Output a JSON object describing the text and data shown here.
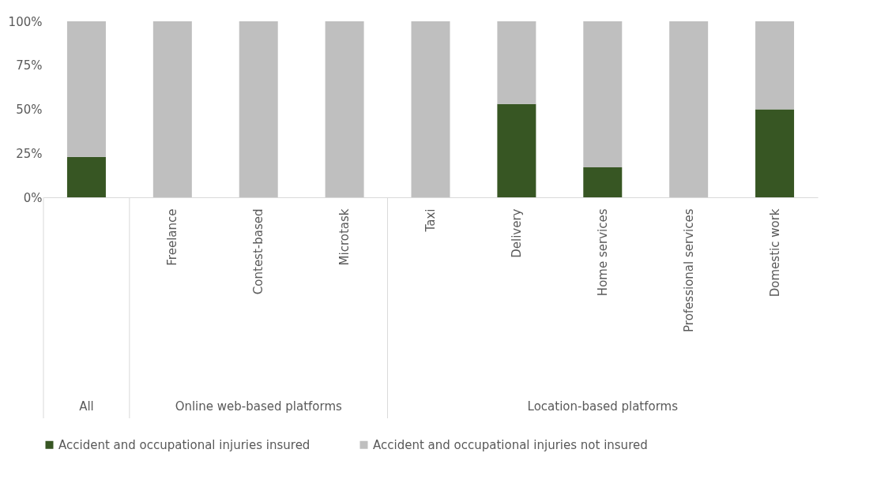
{
  "chart_data": {
    "type": "bar",
    "stacked": true,
    "categories": [
      null,
      "Freelance",
      "Contest-based",
      "Microtask",
      "Taxi",
      "Delivery",
      "Home services",
      "Professional services",
      "Domestic work"
    ],
    "series": [
      {
        "name": "Accident and occupational injuries insured",
        "color": "#375623",
        "values": [
          23,
          0,
          0,
          0,
          0,
          53,
          17,
          0,
          50
        ]
      },
      {
        "name": "Accident and occupational injuries not insured",
        "color": "#bfbfbf",
        "values": [
          77,
          100,
          100,
          100,
          100,
          47,
          83,
          100,
          50
        ]
      }
    ],
    "ylim": [
      0,
      100
    ],
    "yticks": [
      {
        "value": 0,
        "label": "0%"
      },
      {
        "value": 25,
        "label": "25%"
      },
      {
        "value": 50,
        "label": "50%"
      },
      {
        "value": 75,
        "label": "75%"
      },
      {
        "value": 100,
        "label": "100%"
      }
    ],
    "grid": false,
    "legend": "bottom",
    "annotations": [
      "All",
      "Online web-based platforms",
      "Location-based platforms"
    ]
  }
}
